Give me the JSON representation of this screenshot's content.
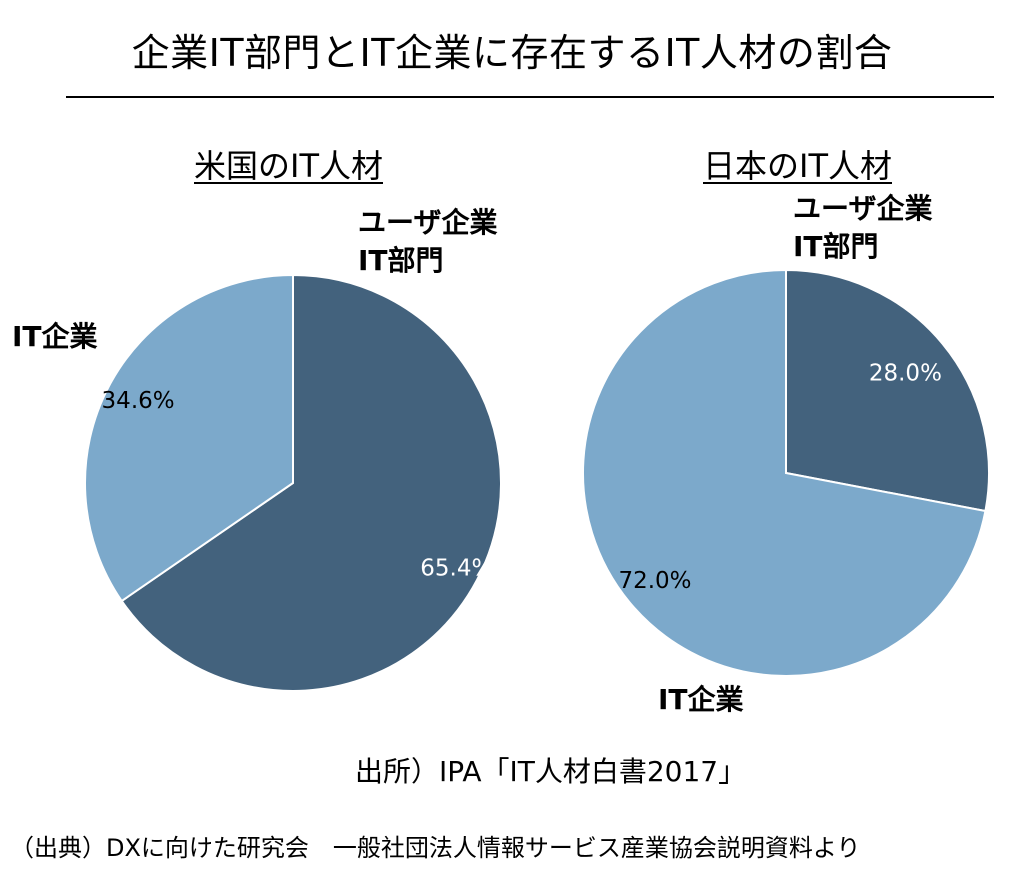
{
  "title": "企業IT部門とIT企業に存在するIT人材の割合",
  "colors": {
    "dark": "#43627d",
    "light": "#7ca9cb",
    "edge": "#ffffff"
  },
  "chart_data": [
    {
      "type": "pie",
      "title": "米国のIT人材",
      "slices": [
        {
          "label_lines": [
            "ユーザ企業",
            "IT部門"
          ],
          "value": 65.4,
          "value_label": "65.4%",
          "color": "#43627d"
        },
        {
          "label_lines": [
            "IT企業"
          ],
          "value": 34.6,
          "value_label": "34.6%",
          "color": "#7ca9cb"
        }
      ]
    },
    {
      "type": "pie",
      "title": "日本のIT人材",
      "slices": [
        {
          "label_lines": [
            "ユーザ企業",
            "IT部門"
          ],
          "value": 28.0,
          "value_label": "28.0%",
          "color": "#43627d"
        },
        {
          "label_lines": [
            "IT企業"
          ],
          "value": 72.0,
          "value_label": "72.0%",
          "color": "#7ca9cb"
        }
      ]
    }
  ],
  "source": "出所）IPA「IT人材白書2017」",
  "footnote": "（出典）DXに向けた研究会　一般社団法人情報サービス産業協会説明資料より"
}
